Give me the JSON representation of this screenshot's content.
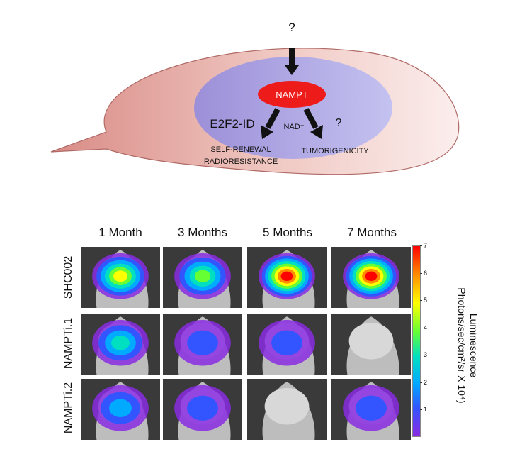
{
  "diagram": {
    "question_top": "?",
    "center": "NAMPT",
    "left_label": "E2F2-ID",
    "middle_label": "NAD⁺",
    "question_right": "?",
    "outcome_left_line1": "SELF-RENEWAL",
    "outcome_left_line2": "RADIORESISTANCE",
    "outcome_right": "TUMORIGENICITY"
  },
  "imaging": {
    "columns": [
      "1 Month",
      "3 Months",
      "5 Months",
      "7 Months"
    ],
    "rows": [
      "SHC002",
      "NAMPTi.1",
      "NAMPTi.2"
    ],
    "signal_levels": [
      [
        4.5,
        3.5,
        6.5,
        7.0
      ],
      [
        2.5,
        0.5,
        0.5,
        0.0
      ],
      [
        2.0,
        1.0,
        0.0,
        1.0
      ]
    ]
  },
  "color_scale": {
    "title_line1": "Luminescence",
    "title_line2": "Photons/sec/cm²/sr X 10⁴)",
    "ticks": [
      "7",
      "6",
      "5",
      "4",
      "3",
      "2",
      "1"
    ],
    "max": 7,
    "min": 0
  }
}
